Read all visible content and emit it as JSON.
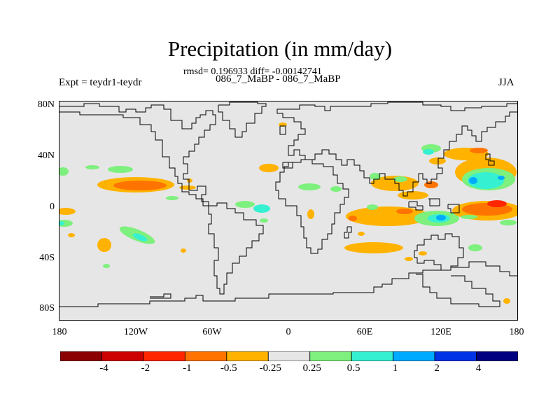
{
  "title": "Precipitation (in mm/day)",
  "stats": "rmsd= 0.196933 diff= -0.00142741",
  "expt_label": "Expt = teydr1-teydr",
  "experiment": "086_7_MaBP - 086_7_MaBP",
  "season": "JJA",
  "lat_ticks": [
    "80N",
    "40N",
    "0",
    "40S",
    "80S"
  ],
  "lon_ticks": [
    "180",
    "120W",
    "60W",
    "0",
    "60E",
    "120E",
    "180"
  ],
  "colorbar": {
    "labels": [
      "-4",
      "-2",
      "-1",
      "-0.5",
      "-0.25",
      "0.25",
      "0.5",
      "1",
      "2",
      "4"
    ],
    "colors": [
      "#8b0000",
      "#cc0000",
      "#ff2600",
      "#ff7400",
      "#ffb300",
      "#e6e6e6",
      "#7df07d",
      "#36f0d2",
      "#00aaff",
      "#0033e6",
      "#000080"
    ]
  },
  "colors": {
    "background": "#e6e6e6",
    "orange": "#ffb300",
    "dark_orange": "#ff7400",
    "red": "#ff2600",
    "green": "#7df07d",
    "cyan": "#36f0d2",
    "blue": "#00aaff"
  }
}
